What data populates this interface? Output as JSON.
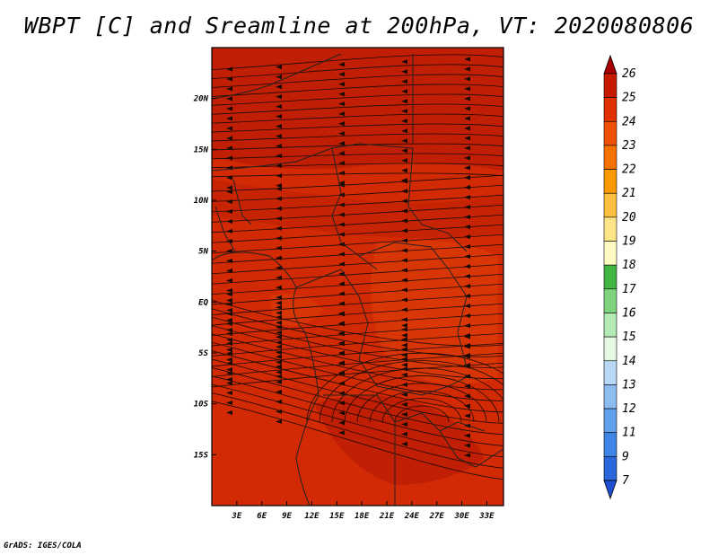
{
  "title": "WBPT [C] and Sreamline at 200hPa, VT: 2020080806",
  "credit": "GrADS: IGES/COLA",
  "map": {
    "lon_range": [
      0,
      35
    ],
    "lat_range": [
      -20,
      25
    ],
    "lon_ticks": [
      "3E",
      "6E",
      "9E",
      "12E",
      "15E",
      "18E",
      "21E",
      "24E",
      "27E",
      "30E",
      "33E"
    ],
    "lat_ticks": [
      "20N",
      "15N",
      "10N",
      "5N",
      "EQ",
      "5S",
      "10S",
      "15S"
    ],
    "colors": {
      "background": "#d12a05",
      "warm_band": "#c01e05",
      "light_patch": "#e0400a",
      "streamline": "#1a0a05",
      "border": "#222222"
    }
  },
  "colorbar": {
    "levels": [
      "26",
      "25",
      "24",
      "23",
      "22",
      "21",
      "20",
      "19",
      "18",
      "17",
      "16",
      "15",
      "14",
      "13",
      "12",
      "11",
      "9",
      "7"
    ],
    "colors": [
      "#a80000",
      "#c51a00",
      "#e03200",
      "#f05000",
      "#f87000",
      "#fb9a00",
      "#fcc040",
      "#fde58a",
      "#fffbc2",
      "#42b542",
      "#7dd47d",
      "#b4eab4",
      "#e6fae6",
      "#b8d8f5",
      "#8dbdf0",
      "#62a0ec",
      "#3f84e6",
      "#2a68dc",
      "#1f4ed0"
    ]
  }
}
